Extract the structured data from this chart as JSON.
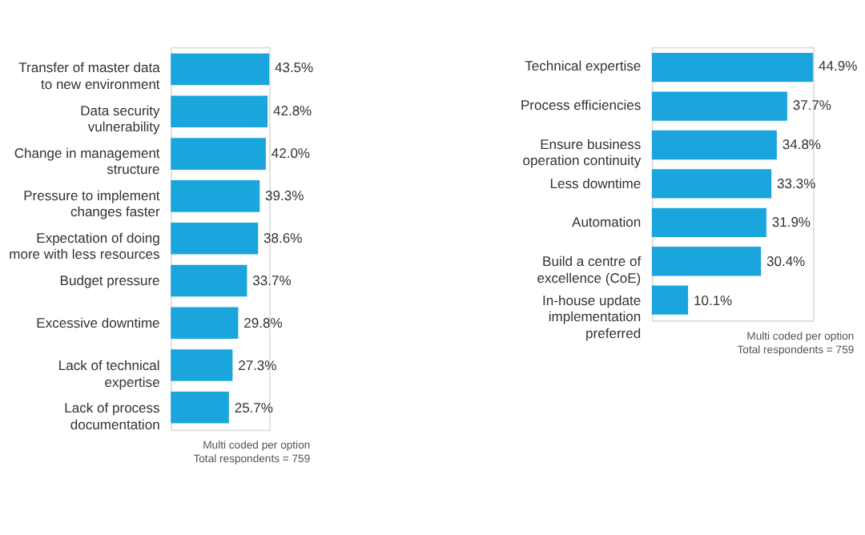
{
  "chart_data": [
    {
      "type": "bar",
      "orientation": "horizontal",
      "categories": [
        "Transfer of master data to new environment",
        "Data security vulnerability",
        "Change in management structure",
        "Pressure to implement changes faster",
        "Expectation of doing more with less resources",
        "Budget pressure",
        "Excessive downtime",
        "Lack of technical expertise",
        "Lack of process documentation"
      ],
      "values": [
        43.5,
        42.8,
        42.0,
        39.3,
        38.6,
        33.7,
        29.8,
        27.3,
        25.7
      ],
      "value_labels": [
        "43.5%",
        "42.8%",
        "42.0%",
        "39.3%",
        "38.6%",
        "33.7%",
        "29.8%",
        "27.3%",
        "25.7%"
      ],
      "color": "#1aa6dc",
      "annotations": [
        "Multi coded per option",
        "Total respondents = 759"
      ],
      "grid": false,
      "tick_labels": false
    },
    {
      "type": "bar",
      "orientation": "horizontal",
      "categories": [
        "Technical expertise",
        "Process efficiencies",
        "Ensure business operation continuity",
        "Less downtime",
        "Automation",
        "Build a centre of excellence (CoE)",
        "In-house update implementation preferred"
      ],
      "values": [
        44.9,
        37.7,
        34.8,
        33.3,
        31.9,
        30.4,
        10.1
      ],
      "value_labels": [
        "44.9%",
        "37.7%",
        "34.8%",
        "33.3%",
        "31.9%",
        "30.4%",
        "10.1%"
      ],
      "color": "#1aa6dc",
      "annotations": [
        "Multi coded per option",
        "Total respondents = 759"
      ],
      "grid": false,
      "tick_labels": false
    }
  ]
}
